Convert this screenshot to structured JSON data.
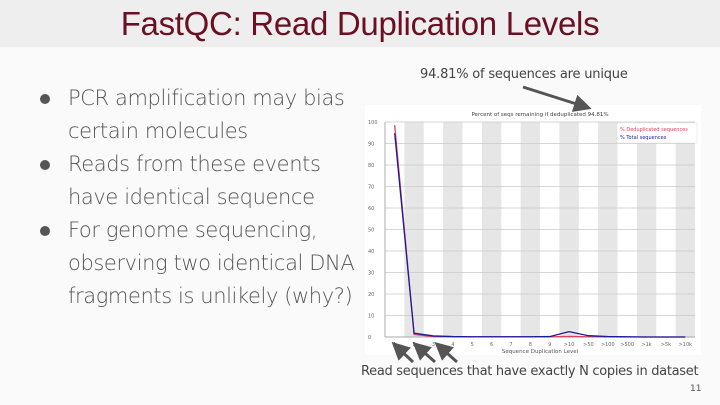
{
  "slide": {
    "title": "FastQC: Read Duplication Levels",
    "page_number": "11",
    "bullets": [
      {
        "text": "PCR amplification may bias certain molecules"
      },
      {
        "text": "Reads from these events have identical sequence"
      },
      {
        "text": "For genome sequencing, observing two identical DNA fragments is unlikely (why?)"
      }
    ],
    "annotations": {
      "unique_note": "94.81% of sequences are unique",
      "caption": "Read sequences that have exactly N copies in dataset"
    }
  },
  "chart_data": {
    "type": "line",
    "title": "Percent of seqs remaining if deduplicated 94.81%",
    "xlabel": "Sequence Duplication Level",
    "ylabel": "",
    "categories": [
      "1",
      "2",
      "3",
      "4",
      "5",
      "6",
      "7",
      "8",
      "9",
      ">10",
      ">50",
      ">100",
      ">500",
      ">1k",
      ">5k",
      ">10k"
    ],
    "ylim": [
      0,
      100
    ],
    "yticks": [
      0,
      10,
      20,
      30,
      40,
      50,
      60,
      70,
      80,
      90,
      100
    ],
    "grid": true,
    "alternating_column_shading": true,
    "legend_position": "top-right",
    "series": [
      {
        "name": "% Deduplicated sequences",
        "color": "#e0405a",
        "values": [
          98.5,
          1.2,
          0.2,
          0.1,
          0.05,
          0.05,
          0.05,
          0.05,
          0.05,
          0.3,
          0.1,
          0.05,
          0.0,
          0.0,
          0.0,
          0.0
        ]
      },
      {
        "name": "% Total sequences",
        "color": "#1a1a9e",
        "values": [
          94.8,
          1.8,
          0.5,
          0.2,
          0.1,
          0.1,
          0.1,
          0.1,
          0.2,
          2.5,
          0.6,
          0.2,
          0.1,
          0.0,
          0.0,
          0.0
        ]
      }
    ]
  }
}
